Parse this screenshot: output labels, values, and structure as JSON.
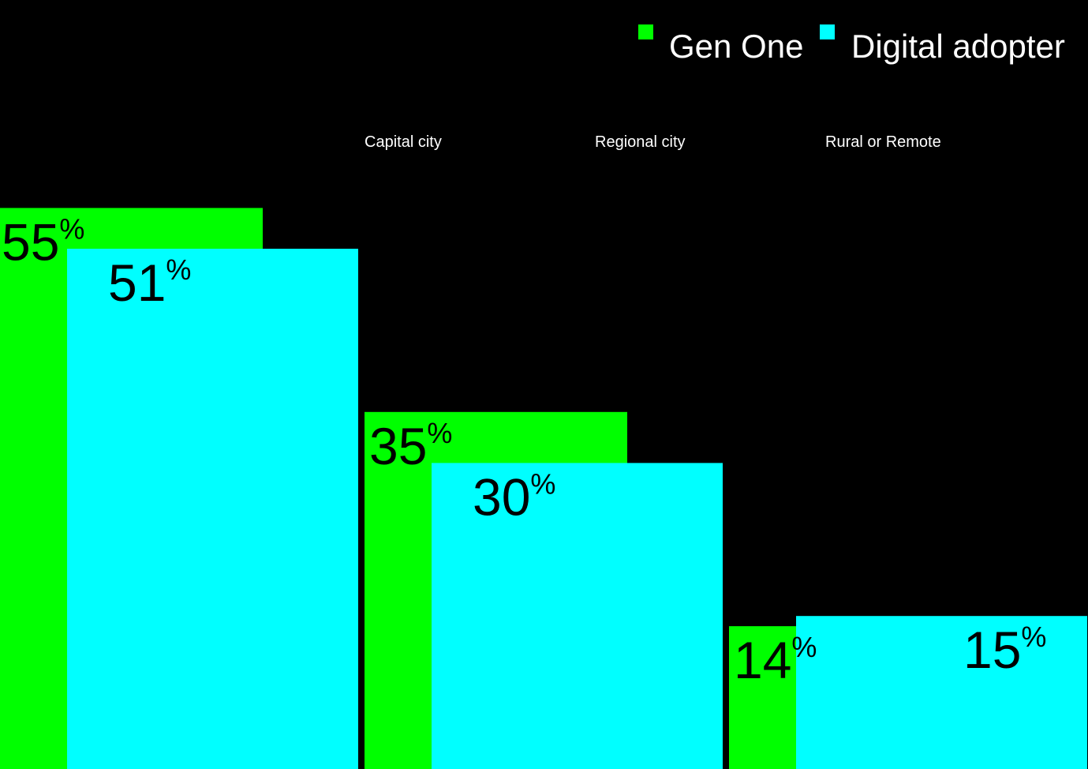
{
  "chart_data": {
    "type": "bar",
    "categories": [
      "Capital city",
      "Regional city",
      "Rural or Remote"
    ],
    "series": [
      {
        "name": "Gen One",
        "values": [
          55,
          35,
          14
        ],
        "color": "#00ff00"
      },
      {
        "name": "Digital adopter",
        "values": [
          51,
          30,
          15
        ],
        "color": "#00ffff"
      }
    ],
    "value_suffix": "%",
    "ylim": [
      0,
      100
    ],
    "grid": false,
    "legend": "top-right"
  },
  "colors": {
    "background": "#000000",
    "text": "#ffffff",
    "value_text": "#000000"
  }
}
